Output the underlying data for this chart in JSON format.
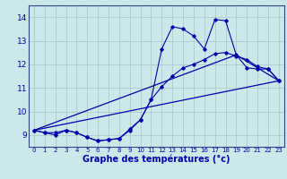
{
  "xlabel": "Graphe des températures (°c)",
  "xlim": [
    -0.5,
    23.5
  ],
  "ylim": [
    8.5,
    14.5
  ],
  "yticks": [
    9,
    10,
    11,
    12,
    13,
    14
  ],
  "xticks": [
    0,
    1,
    2,
    3,
    4,
    5,
    6,
    7,
    8,
    9,
    10,
    11,
    12,
    13,
    14,
    15,
    16,
    17,
    18,
    19,
    20,
    21,
    22,
    23
  ],
  "bg_color": "#cce8ea",
  "grid_color": "#aacccc",
  "line_color": "#0000aa",
  "series": {
    "line1_x": [
      0,
      1,
      2,
      3,
      4,
      5,
      6,
      7,
      8,
      9,
      10,
      11,
      12,
      13,
      14,
      15,
      16,
      17,
      18,
      19,
      20,
      21,
      22,
      23
    ],
    "line1_y": [
      9.2,
      9.1,
      9.1,
      9.2,
      9.1,
      8.9,
      8.75,
      8.8,
      8.85,
      9.2,
      9.65,
      10.5,
      12.65,
      13.6,
      13.5,
      13.2,
      12.65,
      13.9,
      13.85,
      12.4,
      11.85,
      11.8,
      11.8,
      11.3
    ],
    "line2_x": [
      0,
      1,
      2,
      3,
      4,
      5,
      6,
      7,
      8,
      9,
      10,
      11,
      12,
      13,
      14,
      15,
      16,
      17,
      18,
      19,
      20,
      21,
      22,
      23
    ],
    "line2_y": [
      9.2,
      9.1,
      9.0,
      9.2,
      9.1,
      8.9,
      8.75,
      8.8,
      8.85,
      9.25,
      9.65,
      10.5,
      11.05,
      11.5,
      11.85,
      12.0,
      12.2,
      12.45,
      12.5,
      12.35,
      12.2,
      11.9,
      11.8,
      11.3
    ],
    "line3_x": [
      0,
      23
    ],
    "line3_y": [
      9.2,
      11.3
    ],
    "line4_x": [
      0,
      19,
      23
    ],
    "line4_y": [
      9.2,
      12.4,
      11.3
    ]
  }
}
